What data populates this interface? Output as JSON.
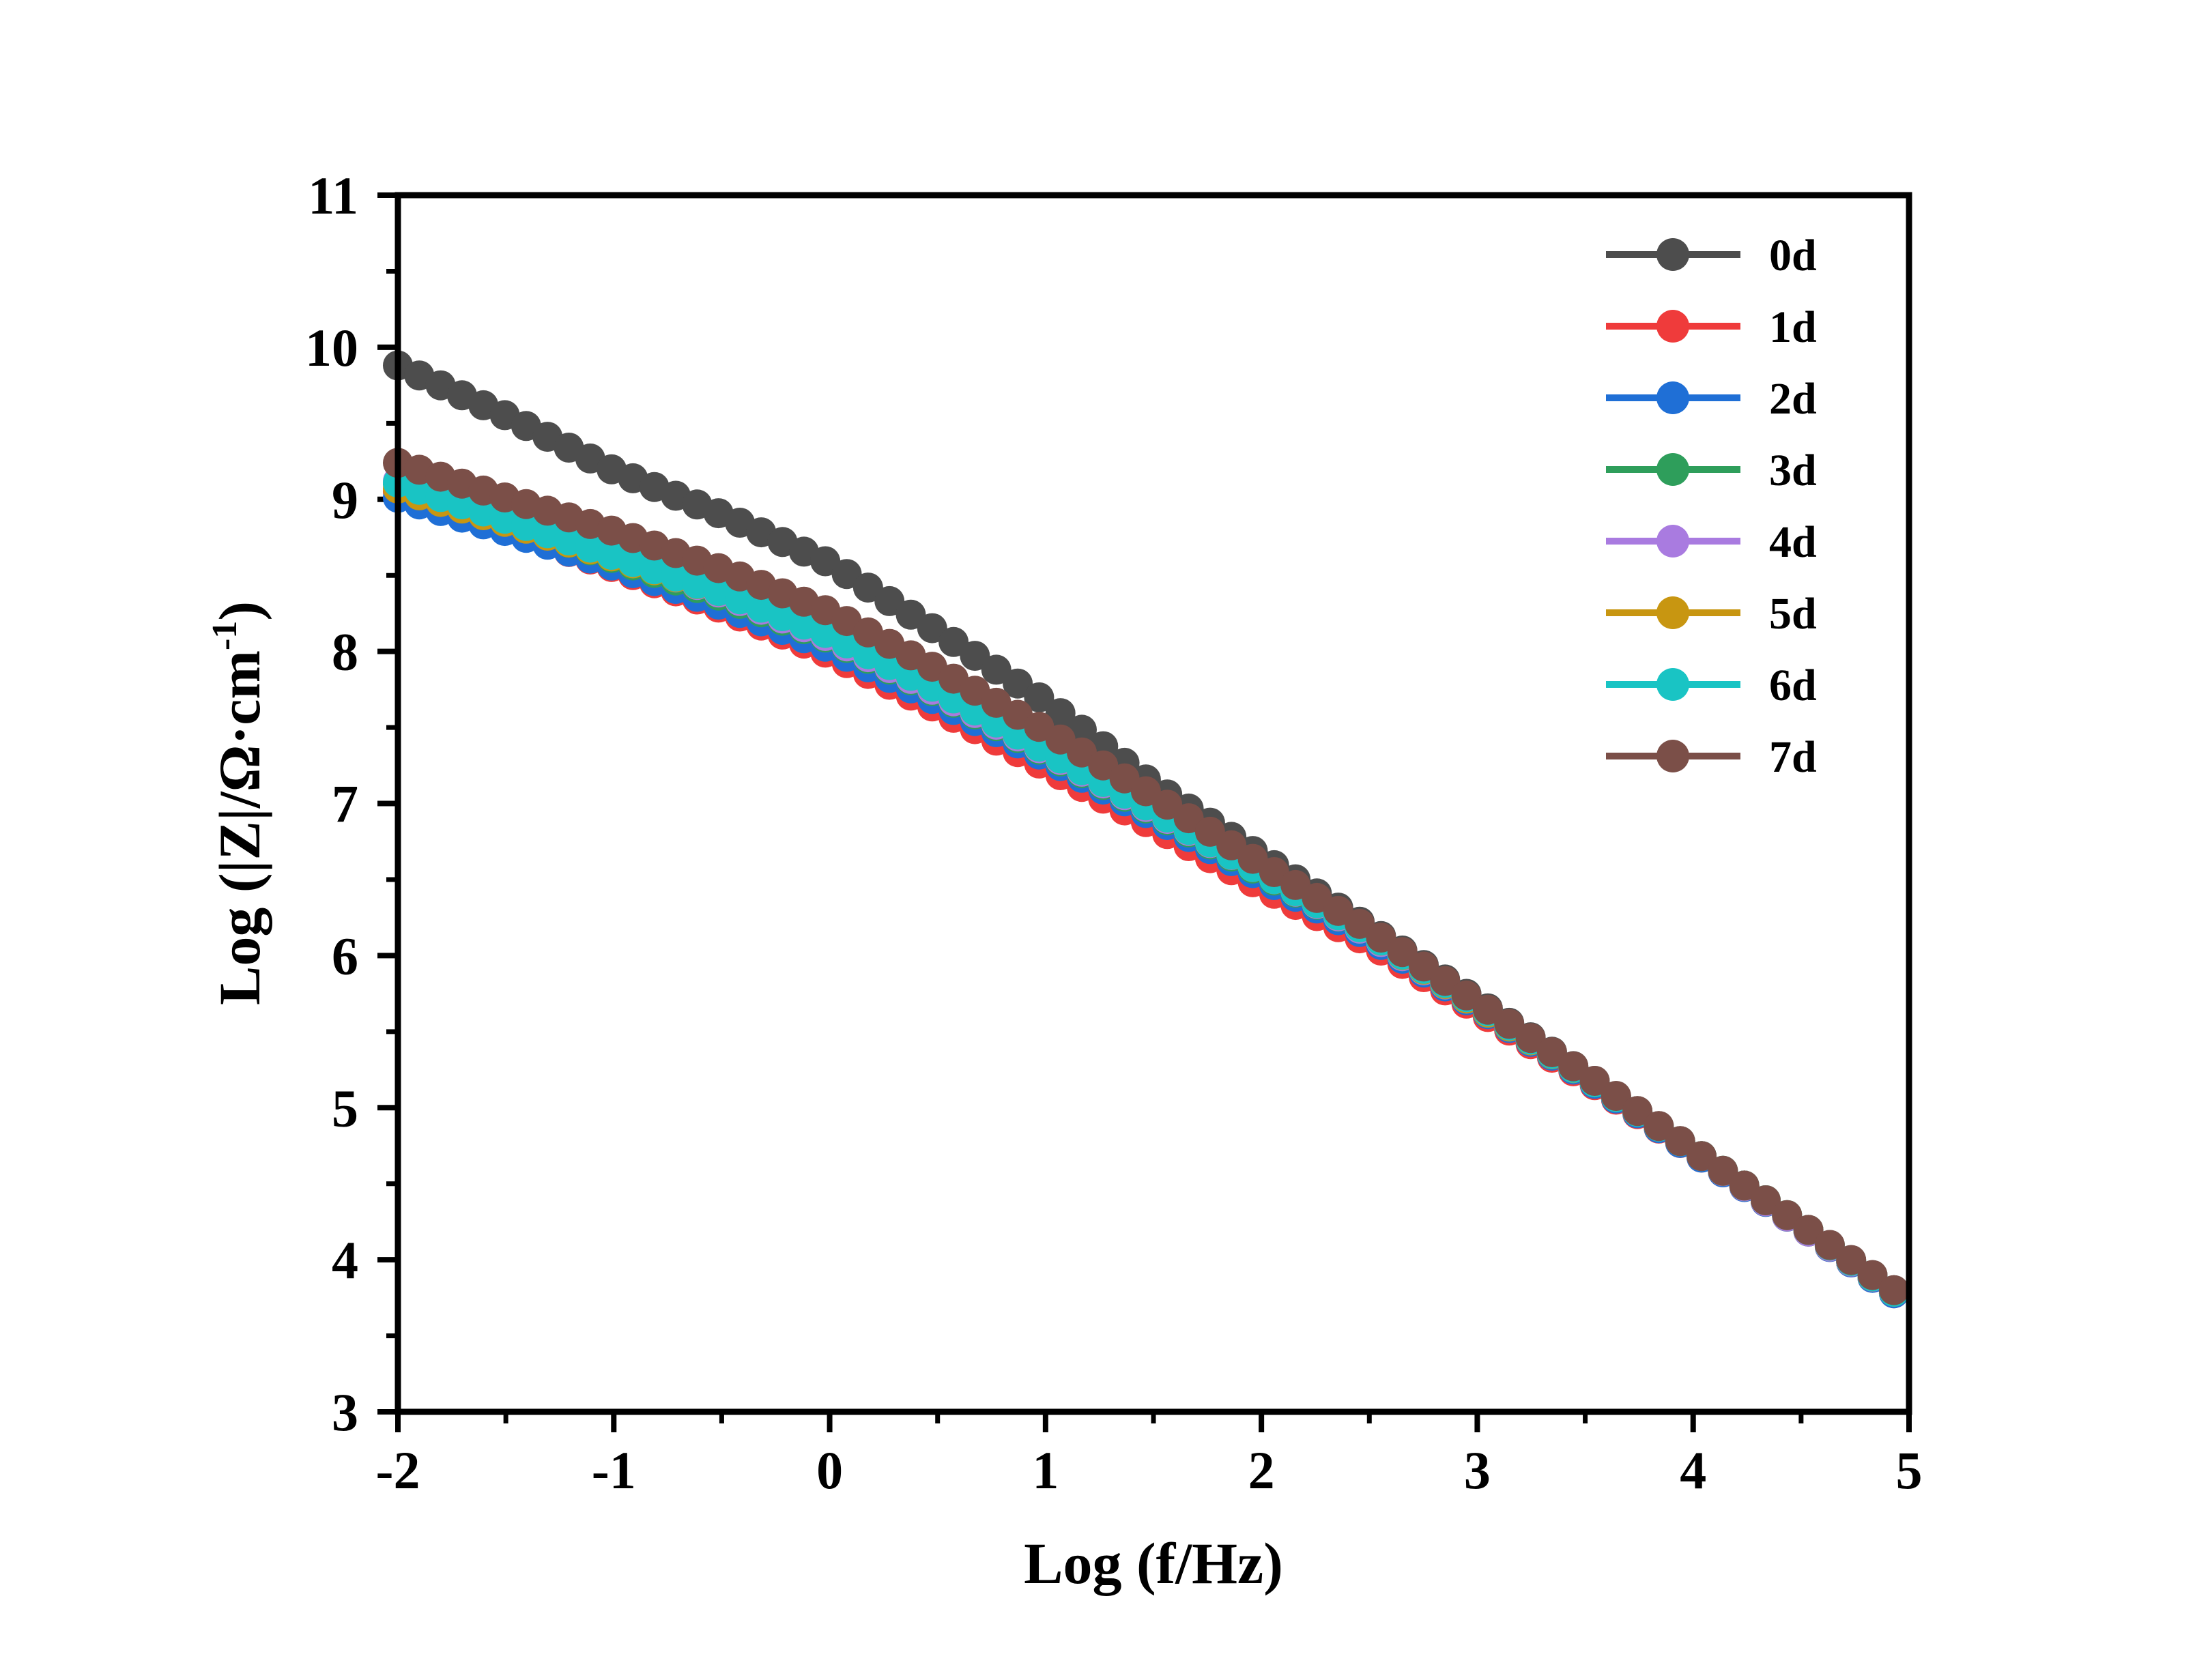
{
  "chart_data": {
    "type": "scatter",
    "xlabel": "Log (f/Hz)",
    "ylabel": "Log (|Z|/Ω·cm",
    "ylabel_sup": "-1",
    "ylabel_close": ")",
    "xlim": [
      -2,
      5
    ],
    "ylim": [
      3,
      11
    ],
    "xticks": [
      "-2",
      "-1",
      "0",
      "1",
      "2",
      "3",
      "4",
      "5"
    ],
    "yticks": [
      "3",
      "4",
      "5",
      "6",
      "7",
      "8",
      "9",
      "10",
      "11"
    ],
    "grid": false,
    "legend_position": "top-right",
    "x": [
      -2.0,
      -1.5,
      -1.0,
      -0.5,
      0.0,
      0.5,
      1.0,
      1.5,
      2.0,
      2.5,
      3.0,
      3.5,
      4.0,
      4.5,
      4.93
    ],
    "series": [
      {
        "name": "0d",
        "color": "#4d4d4d",
        "values": [
          9.88,
          9.55,
          9.19,
          8.9,
          8.58,
          8.13,
          7.67,
          7.12,
          6.65,
          6.18,
          5.7,
          5.22,
          4.72,
          4.23,
          3.8
        ]
      },
      {
        "name": "1d",
        "color": "#ef3b3b",
        "values": [
          9.05,
          8.8,
          8.55,
          8.28,
          7.98,
          7.62,
          7.24,
          6.85,
          6.45,
          6.08,
          5.64,
          5.19,
          4.71,
          4.22,
          3.78
        ]
      },
      {
        "name": "2d",
        "color": "#1f6fd6",
        "values": [
          9.01,
          8.79,
          8.56,
          8.3,
          8.02,
          7.67,
          7.3,
          6.91,
          6.51,
          6.12,
          5.66,
          5.2,
          4.71,
          4.22,
          3.78
        ]
      },
      {
        "name": "3d",
        "color": "#2e9e5b",
        "values": [
          9.1,
          8.86,
          8.61,
          8.36,
          8.08,
          7.72,
          7.33,
          6.94,
          6.54,
          6.14,
          5.67,
          5.21,
          4.72,
          4.22,
          3.79
        ]
      },
      {
        "name": "4d",
        "color": "#a97be0",
        "values": [
          9.12,
          8.88,
          8.63,
          8.38,
          8.09,
          7.73,
          7.34,
          6.95,
          6.55,
          6.14,
          5.67,
          5.21,
          4.72,
          4.22,
          3.79
        ]
      },
      {
        "name": "5d",
        "color": "#c89611",
        "values": [
          9.07,
          8.85,
          8.62,
          8.39,
          8.11,
          7.75,
          7.35,
          6.96,
          6.55,
          6.15,
          5.67,
          5.21,
          4.72,
          4.23,
          3.79
        ]
      },
      {
        "name": "6d",
        "color": "#19c4c4",
        "values": [
          9.11,
          8.87,
          8.63,
          8.39,
          8.11,
          7.75,
          7.35,
          6.96,
          6.55,
          6.15,
          5.68,
          5.21,
          4.72,
          4.23,
          3.79
        ]
      },
      {
        "name": "7d",
        "color": "#7b4f48",
        "values": [
          9.24,
          9.01,
          8.79,
          8.54,
          8.26,
          7.88,
          7.48,
          7.05,
          6.6,
          6.17,
          5.69,
          5.22,
          4.72,
          4.23,
          3.8
        ]
      }
    ]
  }
}
